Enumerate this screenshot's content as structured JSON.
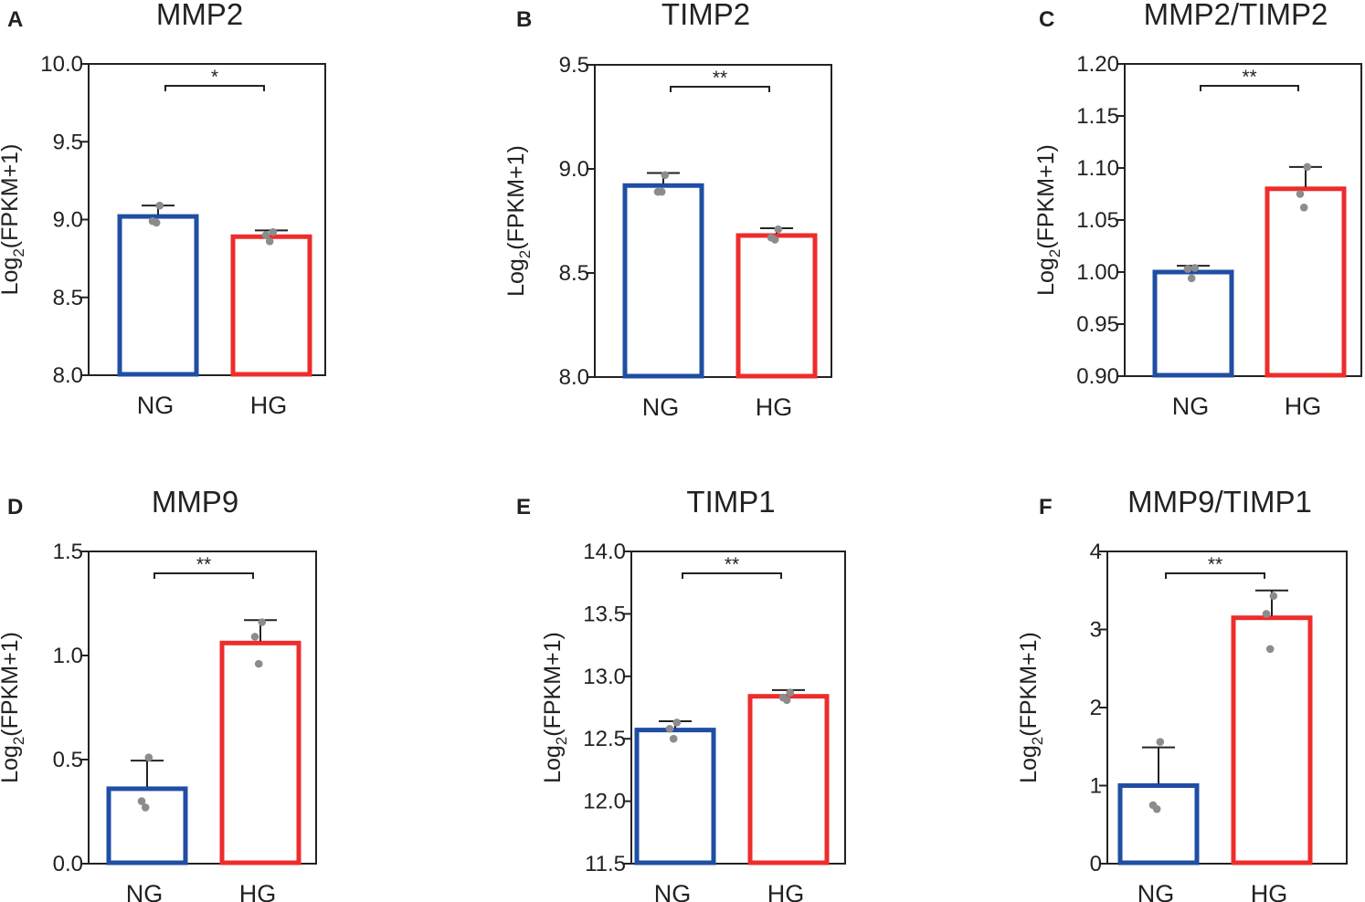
{
  "colors": {
    "NG": "#1f4ea3",
    "HG": "#ee2c2c",
    "point": "#8c8c8c",
    "axis": "#222222"
  },
  "chart_data": [
    {
      "panel": "A",
      "title": "MMP2",
      "type": "bar",
      "ylabel_main": "Log",
      "ylabel_sub": "2",
      "ylabel_rest": "(FPKM+1)",
      "categories": [
        "NG",
        "HG"
      ],
      "values": [
        9.02,
        8.89
      ],
      "errors": [
        0.07,
        0.04
      ],
      "points": [
        [
          9.09,
          8.99,
          8.98
        ],
        [
          8.92,
          8.9,
          8.86
        ]
      ],
      "ylim": [
        8.0,
        10.0
      ],
      "yticks": [
        "8.0",
        "8.5",
        "9.0",
        "9.5",
        "10.0"
      ],
      "significance": "*"
    },
    {
      "panel": "B",
      "title": "TIMP2",
      "type": "bar",
      "ylabel_main": "Log",
      "ylabel_sub": "2",
      "ylabel_rest": "(FPKM+1)",
      "categories": [
        "NG",
        "HG"
      ],
      "values": [
        8.92,
        8.68
      ],
      "errors": [
        0.06,
        0.035
      ],
      "points": [
        [
          8.97,
          8.89,
          8.89
        ],
        [
          8.71,
          8.67,
          8.66
        ]
      ],
      "ylim": [
        8.0,
        9.5
      ],
      "yticks": [
        "8.0",
        "8.5",
        "9.0",
        "9.5"
      ],
      "significance": "**"
    },
    {
      "panel": "C",
      "title": "MMP2/TIMP2",
      "type": "bar",
      "ylabel_main": "Log",
      "ylabel_sub": "2",
      "ylabel_rest": "(FPKM+1)",
      "categories": [
        "NG",
        "HG"
      ],
      "values": [
        1.0,
        1.08
      ],
      "errors": [
        0.006,
        0.021
      ],
      "points": [
        [
          1.004,
          1.003,
          0.994
        ],
        [
          1.101,
          1.075,
          1.062
        ]
      ],
      "ylim": [
        0.9,
        1.2
      ],
      "yticks": [
        "0.90",
        "0.95",
        "1.00",
        "1.05",
        "1.10",
        "1.15",
        "1.20"
      ],
      "significance": "**"
    },
    {
      "panel": "D",
      "title": "MMP9",
      "type": "bar",
      "ylabel_main": "Log",
      "ylabel_sub": "2",
      "ylabel_rest": "(FPKM+1)",
      "categories": [
        "NG",
        "HG"
      ],
      "values": [
        0.36,
        1.06
      ],
      "errors": [
        0.135,
        0.11
      ],
      "points": [
        [
          0.51,
          0.3,
          0.27
        ],
        [
          1.16,
          1.09,
          0.96
        ]
      ],
      "ylim": [
        0.0,
        1.5
      ],
      "yticks": [
        "0.0",
        "0.5",
        "1.0",
        "1.5"
      ],
      "significance": "**"
    },
    {
      "panel": "E",
      "title": "TIMP1",
      "type": "bar",
      "ylabel_main": "Log",
      "ylabel_sub": "2",
      "ylabel_rest": "(FPKM+1)",
      "categories": [
        "NG",
        "HG"
      ],
      "values": [
        12.57,
        12.84
      ],
      "errors": [
        0.07,
        0.05
      ],
      "points": [
        [
          12.63,
          12.58,
          12.5
        ],
        [
          12.87,
          12.83,
          12.81
        ]
      ],
      "ylim": [
        11.5,
        14.0
      ],
      "yticks": [
        "11.5",
        "12.0",
        "12.5",
        "13.0",
        "13.5",
        "14.0"
      ],
      "significance": "**"
    },
    {
      "panel": "F",
      "title": "MMP9/TIMP1",
      "type": "bar",
      "ylabel_main": "Log",
      "ylabel_sub": "2",
      "ylabel_rest": "(FPKM+1)",
      "categories": [
        "NG",
        "HG"
      ],
      "values": [
        1.0,
        3.15
      ],
      "errors": [
        0.49,
        0.35
      ],
      "points": [
        [
          1.56,
          0.75,
          0.7
        ],
        [
          3.43,
          3.2,
          2.75
        ]
      ],
      "ylim": [
        0,
        4
      ],
      "yticks": [
        "0",
        "1",
        "2",
        "3",
        "4"
      ],
      "significance": "**"
    }
  ]
}
